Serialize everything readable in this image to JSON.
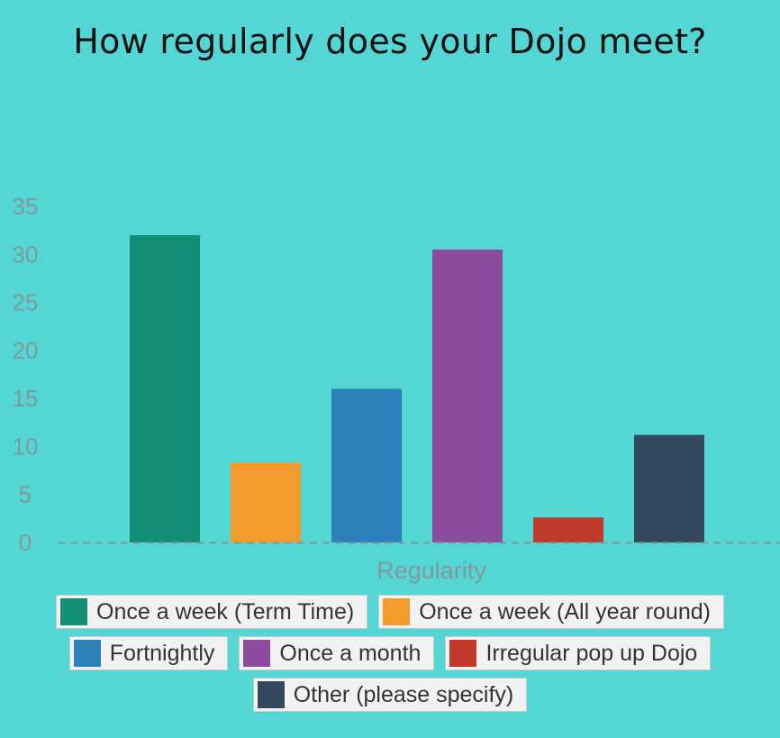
{
  "chart_data": {
    "type": "bar",
    "title": "How regularly does your Dojo meet?",
    "xlabel": "Regularity",
    "ylabel": "",
    "ylim": [
      0,
      35
    ],
    "yticks": [
      0,
      5,
      10,
      15,
      20,
      25,
      30,
      35
    ],
    "grid": false,
    "legend_position": "bottom",
    "categories": [
      "Once a week (Term Time)",
      "Once a week (All year round)",
      "Fortnightly",
      "Once a month",
      "Irregular pop up Dojo",
      "Other (please specify)"
    ],
    "values": [
      32,
      8.3,
      16,
      30.5,
      2.6,
      11.2
    ],
    "colors": [
      "#148f77",
      "#f39c2d",
      "#2e80bb",
      "#8b4c9e",
      "#c0392b",
      "#34495e"
    ]
  },
  "legend_rows": [
    [
      0,
      1
    ],
    [
      2,
      3,
      4
    ],
    [
      5
    ]
  ],
  "style": {
    "background": "#54d6d4",
    "axis_text_color": "#7f9a9c",
    "baseline_color": "#7f9a9c"
  }
}
